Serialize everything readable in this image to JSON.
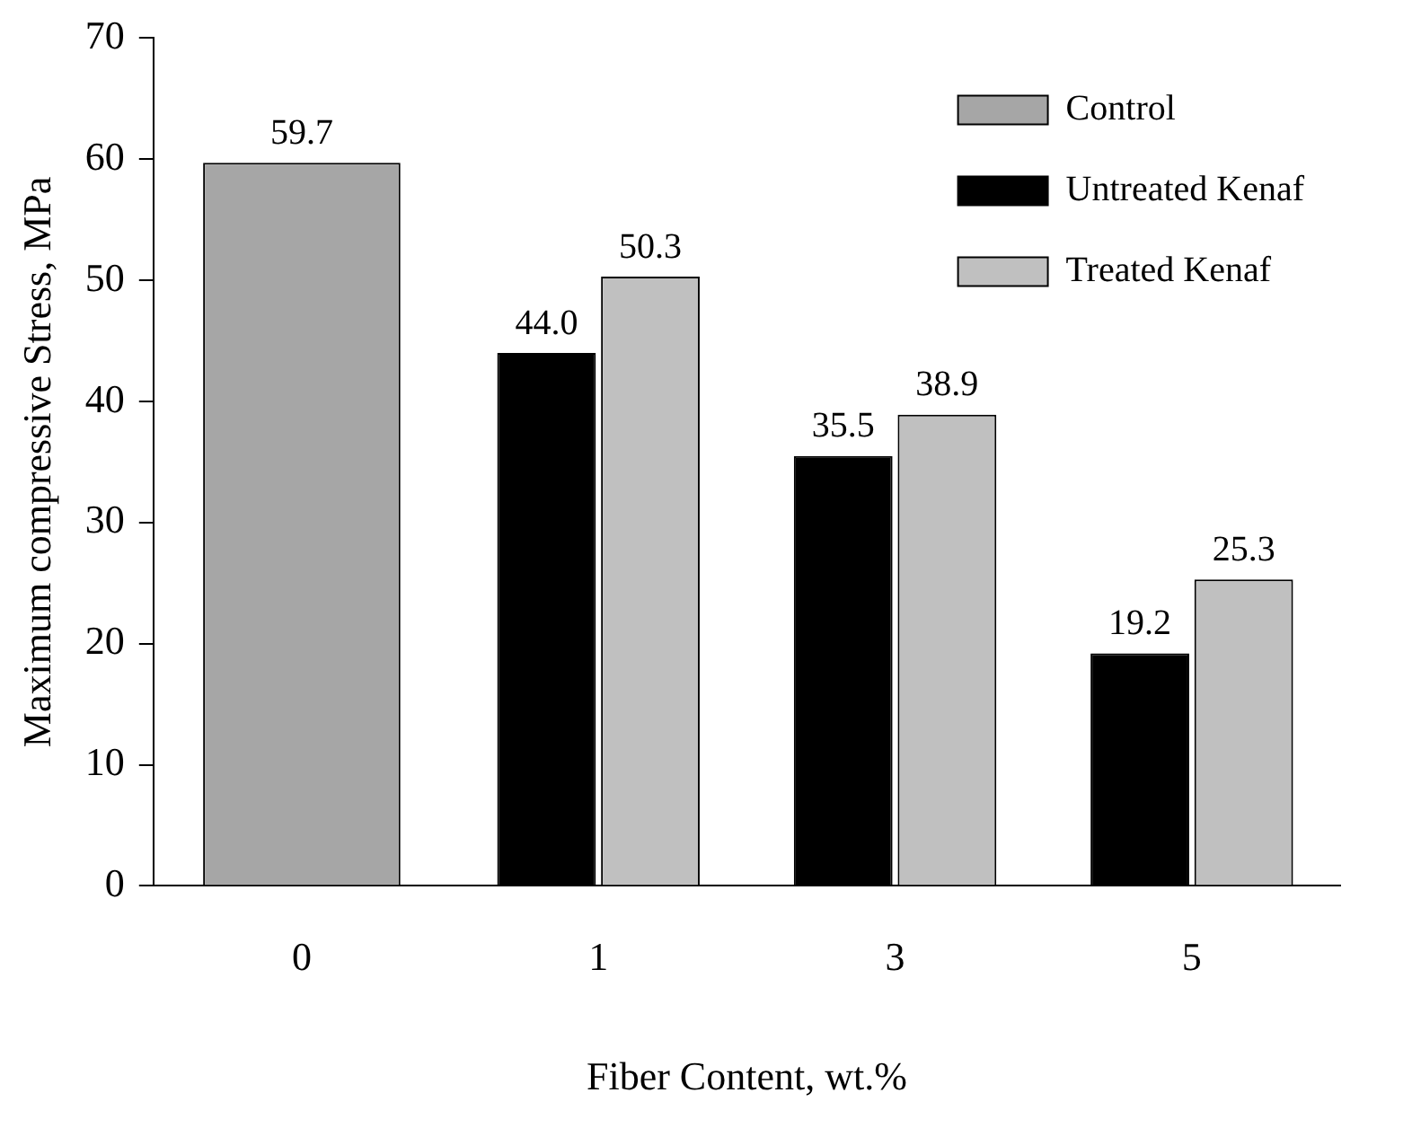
{
  "chart_data": {
    "type": "bar",
    "xlabel": "Fiber Content, wt.%",
    "ylabel": "Maximum compressive Stress, MPa",
    "categories": [
      "0",
      "1",
      "3",
      "5"
    ],
    "series": [
      {
        "name": "Control",
        "color": "#a6a6a6",
        "values": [
          59.7,
          null,
          null,
          null
        ],
        "value_labels": [
          "59.7",
          null,
          null,
          null
        ]
      },
      {
        "name": "Untreated Kenaf",
        "color": "#000000",
        "values": [
          null,
          44.0,
          35.5,
          19.2
        ],
        "value_labels": [
          null,
          "44.0",
          "35.5",
          "19.2"
        ]
      },
      {
        "name": "Treated Kenaf",
        "color": "#c0c0c0",
        "values": [
          null,
          50.3,
          38.9,
          25.3
        ],
        "value_labels": [
          null,
          "50.3",
          "38.9",
          "25.3"
        ]
      }
    ],
    "ylim": [
      0,
      70
    ],
    "yticks": [
      0,
      10,
      20,
      30,
      40,
      50,
      60,
      70
    ],
    "grid": false,
    "legend": "top right"
  }
}
